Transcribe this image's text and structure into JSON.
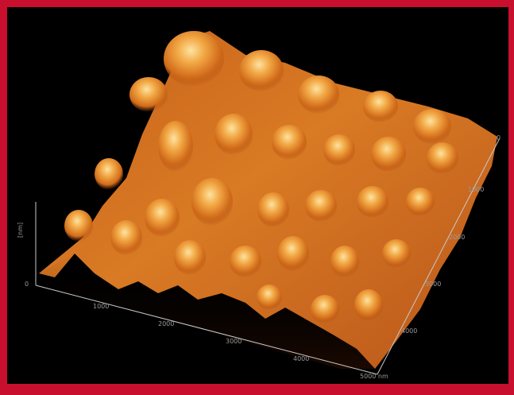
{
  "image": {
    "subject": "3D AFM surface topography render",
    "colors": {
      "frame": "#c8102e",
      "background": "#000000",
      "surface_dark": "#8a3a0b",
      "surface_mid": "#d9741d",
      "surface_light": "#f6c66a",
      "axis": "#c9c9c9"
    }
  },
  "axes": {
    "z_label": "[nm]",
    "z_ticks": [
      "0"
    ],
    "x_ticks": [
      "1000",
      "2000",
      "3000",
      "4000",
      "5000 nm"
    ],
    "y_ticks": [
      "0",
      "1000",
      "2000",
      "3000",
      "4000"
    ]
  }
}
